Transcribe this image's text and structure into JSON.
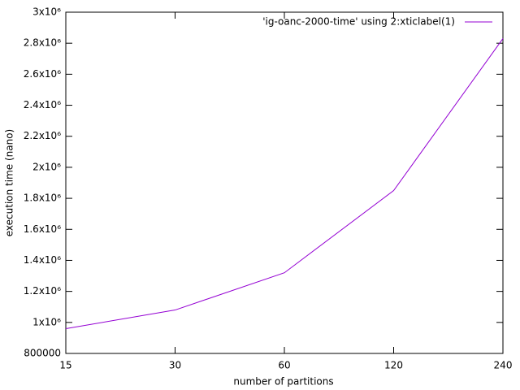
{
  "chart_data": {
    "type": "line",
    "x_label": "number of partitions",
    "y_label": "execution time (nano)",
    "categories": [
      "15",
      "30",
      "60",
      "120",
      "240"
    ],
    "series": [
      {
        "name": "'ig-oanc-2000-time' using 2:xticlabel(1)",
        "color": "#9400d3",
        "values": [
          960000,
          1080000,
          1320000,
          1850000,
          2830000
        ]
      }
    ],
    "ylim": [
      800000,
      3000000
    ],
    "yticks": [
      800000,
      {
        "value": 1000000,
        "label": "1x10⁶"
      },
      {
        "value": 1200000,
        "label": "1.2x10⁶"
      },
      {
        "value": 1400000,
        "label": "1.4x10⁶"
      },
      {
        "value": 1600000,
        "label": "1.6x10⁶"
      },
      {
        "value": 1800000,
        "label": "1.8x10⁶"
      },
      {
        "value": 2000000,
        "label": "2x10⁶"
      },
      {
        "value": 2200000,
        "label": "2.2x10⁶"
      },
      {
        "value": 2400000,
        "label": "2.4x10⁶"
      },
      {
        "value": 2600000,
        "label": "2.6x10⁶"
      },
      {
        "value": 2800000,
        "label": "2.8x10⁶"
      },
      {
        "value": 3000000,
        "label": "3x10⁶"
      }
    ],
    "grid": false,
    "legend": "top right"
  }
}
